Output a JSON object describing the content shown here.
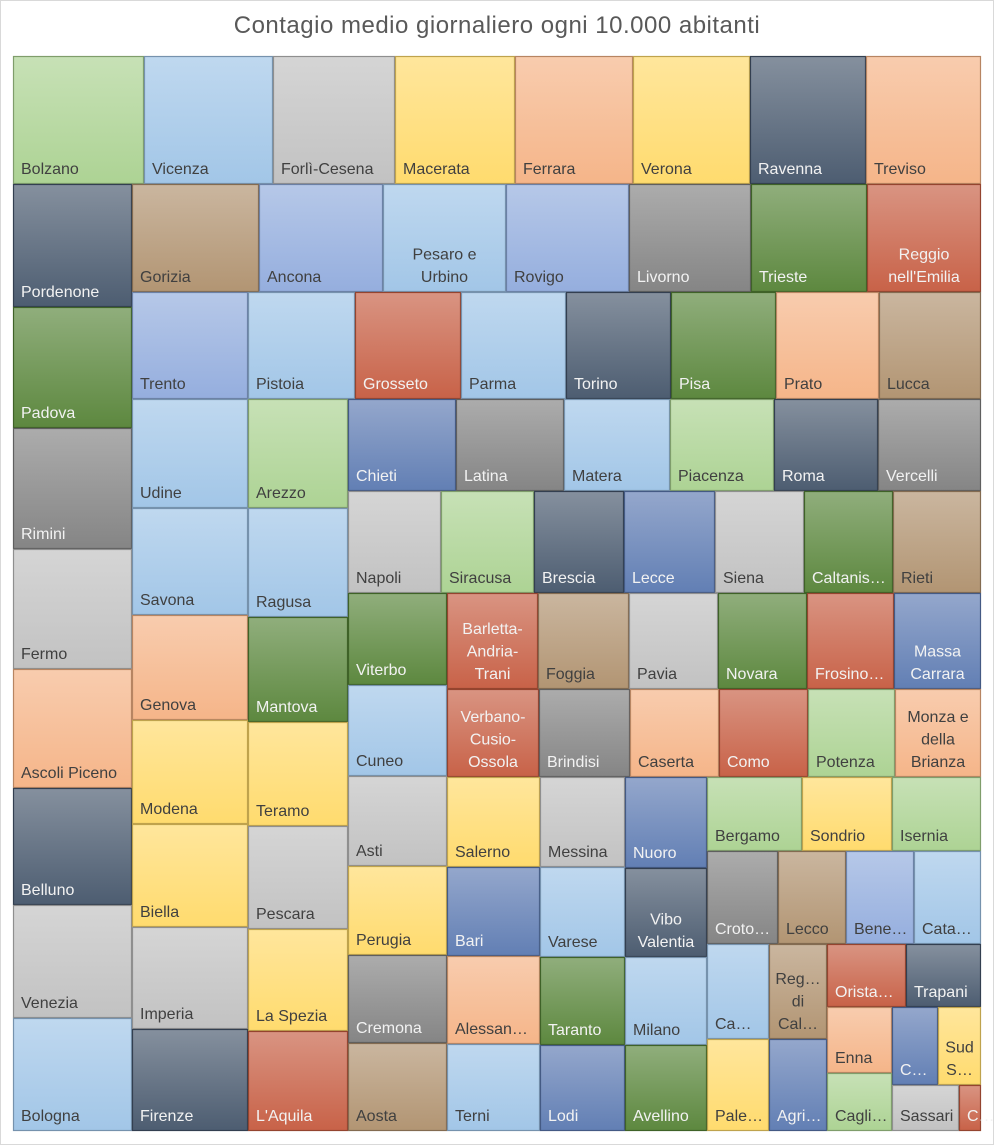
{
  "chart_data": {
    "type": "treemap",
    "title": "Contagio medio giornaliero ogni 10.000 abitanti",
    "categories": [
      "Bolzano",
      "Vicenza",
      "Forlì-Cesena",
      "Macerata",
      "Ferrara",
      "Verona",
      "Ravenna",
      "Treviso",
      "Pordenone",
      "Gorizia",
      "Ancona",
      "Pesaro e Urbino",
      "Rovigo",
      "Livorno",
      "Trieste",
      "Reggio nell'Emilia",
      "Padova",
      "Trento",
      "Pistoia",
      "Grosseto",
      "Parma",
      "Torino",
      "Pisa",
      "Prato",
      "Lucca",
      "Rimini",
      "Udine",
      "Arezzo",
      "Chieti",
      "Latina",
      "Matera",
      "Piacenza",
      "Roma",
      "Vercelli",
      "Fermo",
      "Savona",
      "Ragusa",
      "Napoli",
      "Siracusa",
      "Brescia",
      "Lecce",
      "Siena",
      "Caltanis…",
      "Rieti",
      "Ascoli Piceno",
      "Genova",
      "Mantova",
      "Viterbo",
      "Barletta-Andria-Trani",
      "Foggia",
      "Pavia",
      "Novara",
      "Frosino…",
      "Massa Carrara",
      "Cuneo",
      "Verbano-Cusio-Ossola",
      "Brindisi",
      "Caserta",
      "Como",
      "Potenza",
      "Monza e della Brianza",
      "Belluno",
      "Modena",
      "Teramo",
      "Asti",
      "Salerno",
      "Messina",
      "Nuoro",
      "Bergamo",
      "Sondrio",
      "Isernia",
      "Venezia",
      "Biella",
      "Pescara",
      "Perugia",
      "Bari",
      "Varese",
      "Vibo Valentia",
      "Croto…",
      "Lecco",
      "Bene…",
      "Cata…",
      "Bologna",
      "Imperia",
      "La Spezia",
      "Cremona",
      "Alessan…",
      "Taranto",
      "Milano",
      "Ca…",
      "Reg… di Cal…",
      "Orista…",
      "Trapani",
      "Firenze",
      "L'Aquila",
      "Enna",
      "C…",
      "Sud S…",
      "Aosta",
      "Terni",
      "Lodi",
      "Avellino",
      "Pale…",
      "Agri…",
      "Cagli…",
      "Sassari",
      "C…"
    ],
    "colors": {
      "green": "#a9d18e",
      "blue": "#9dc3e6",
      "gray": "#bfbfbf",
      "gold": "#ffd966",
      "salmon": "#f4b183",
      "navy": "#44546a",
      "brown": "#ae8f6c",
      "periwinkle": "#8faadc",
      "darkgray": "#7f7f7f",
      "darkgreen": "#548235",
      "terracotta": "#c55a3e",
      "steel": "#5a78b0"
    }
  }
}
